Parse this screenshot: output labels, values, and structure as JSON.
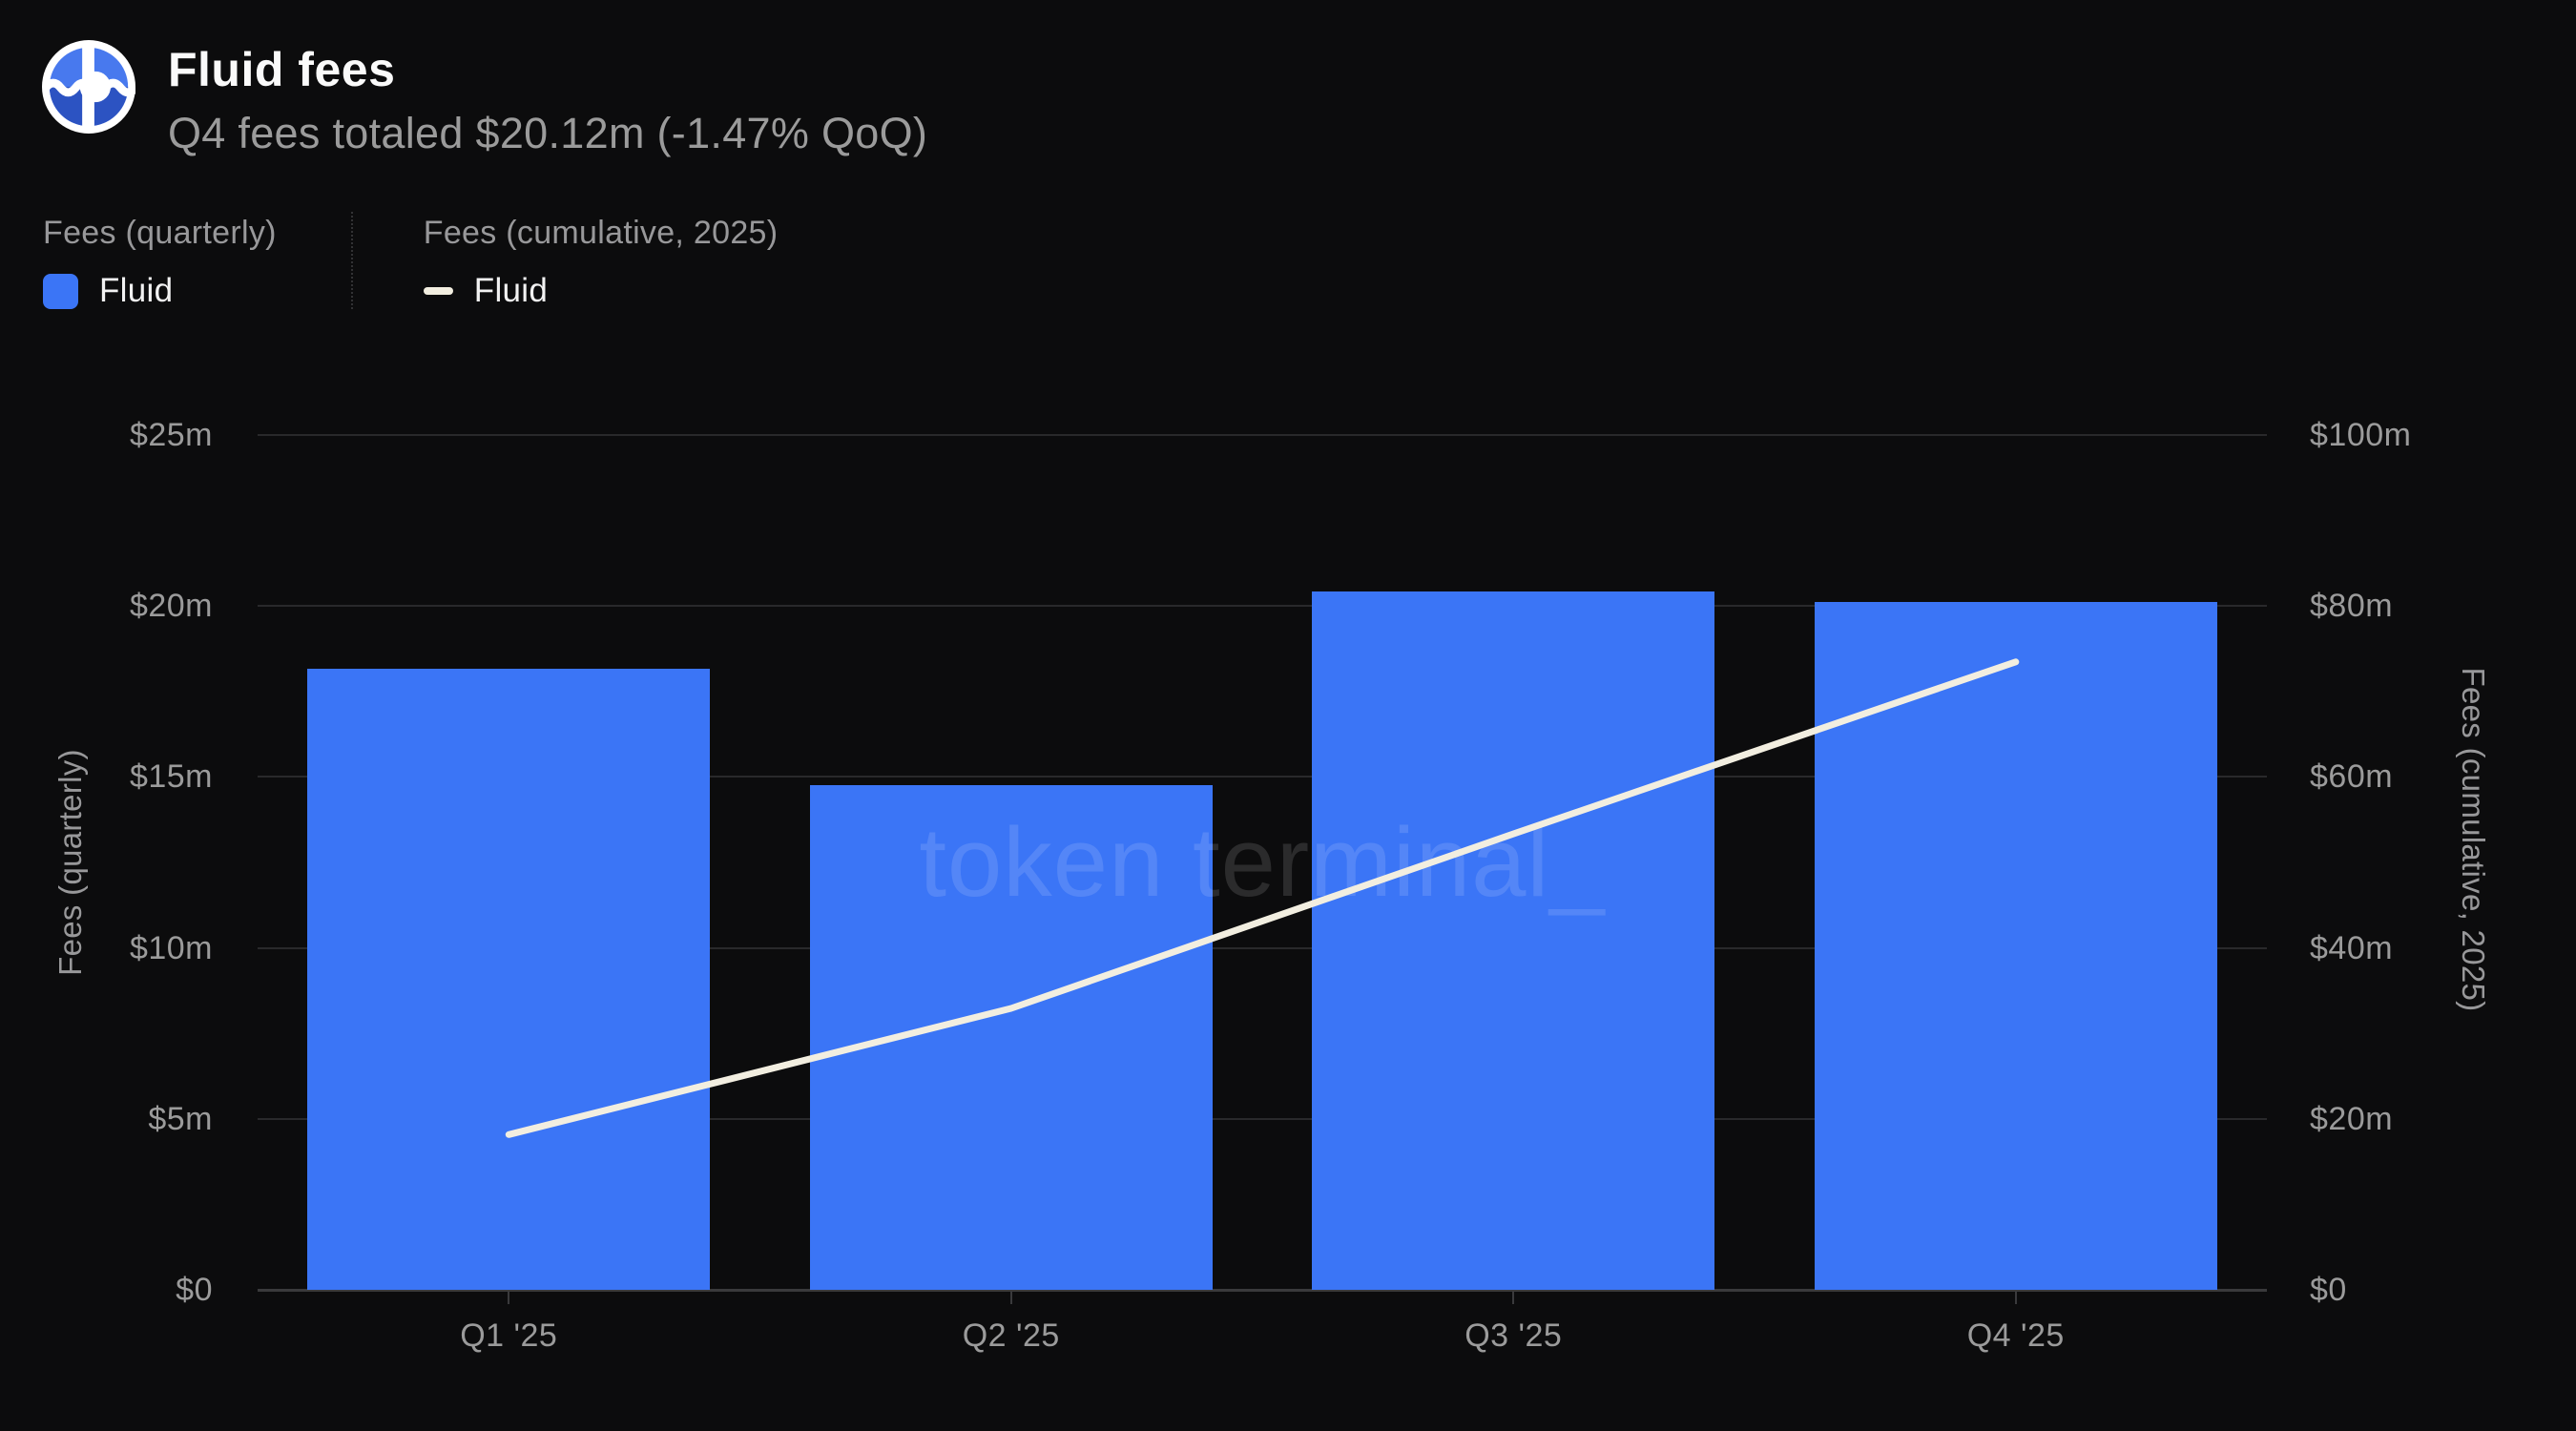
{
  "header": {
    "title": "Fluid fees",
    "subtitle": "Q4 fees totaled $20.12m (-1.47% QoQ)",
    "logo": "fluid-logo"
  },
  "legend": {
    "groups": [
      {
        "heading": "Fees (quarterly)",
        "label": "Fluid",
        "swatch": "square",
        "color": "#3b75f6"
      },
      {
        "heading": "Fees (cumulative, 2025)",
        "label": "Fluid",
        "swatch": "dash",
        "color": "#f2eee0"
      }
    ]
  },
  "watermark": "token terminal_",
  "chart_data": {
    "type": "bar+line",
    "categories": [
      "Q1 '25",
      "Q2 '25",
      "Q3 '25",
      "Q4 '25"
    ],
    "series": [
      {
        "name": "Fees (quarterly)",
        "type": "bar",
        "axis": "left",
        "color": "#3b75f6",
        "values": [
          18.16,
          14.76,
          20.42,
          20.12
        ]
      },
      {
        "name": "Fees (cumulative, 2025)",
        "type": "line",
        "axis": "right",
        "color": "#f2eee0",
        "values": [
          18.16,
          32.92,
          53.34,
          73.46
        ]
      }
    ],
    "left_axis": {
      "title": "Fees (quarterly)",
      "min": 0,
      "max": 25,
      "ticks": [
        "$0",
        "$5m",
        "$10m",
        "$15m",
        "$20m",
        "$25m"
      ]
    },
    "right_axis": {
      "title": "Fees (cumulative, 2025)",
      "min": 0,
      "max": 100,
      "ticks": [
        "$0",
        "$20m",
        "$40m",
        "$60m",
        "$80m",
        "$100m"
      ]
    },
    "grid": true,
    "legend_position": "top-left"
  },
  "colors": {
    "background": "#0c0c0d",
    "bar": "#3b75f6",
    "line": "#f2eee0",
    "gridline": "#29292b",
    "axis_line": "#3a3a3c",
    "text_muted": "#9b9b9b",
    "text_bright": "#fafafa",
    "logo_blue_light": "#4879ee",
    "logo_blue_dark": "#2c53c2"
  }
}
